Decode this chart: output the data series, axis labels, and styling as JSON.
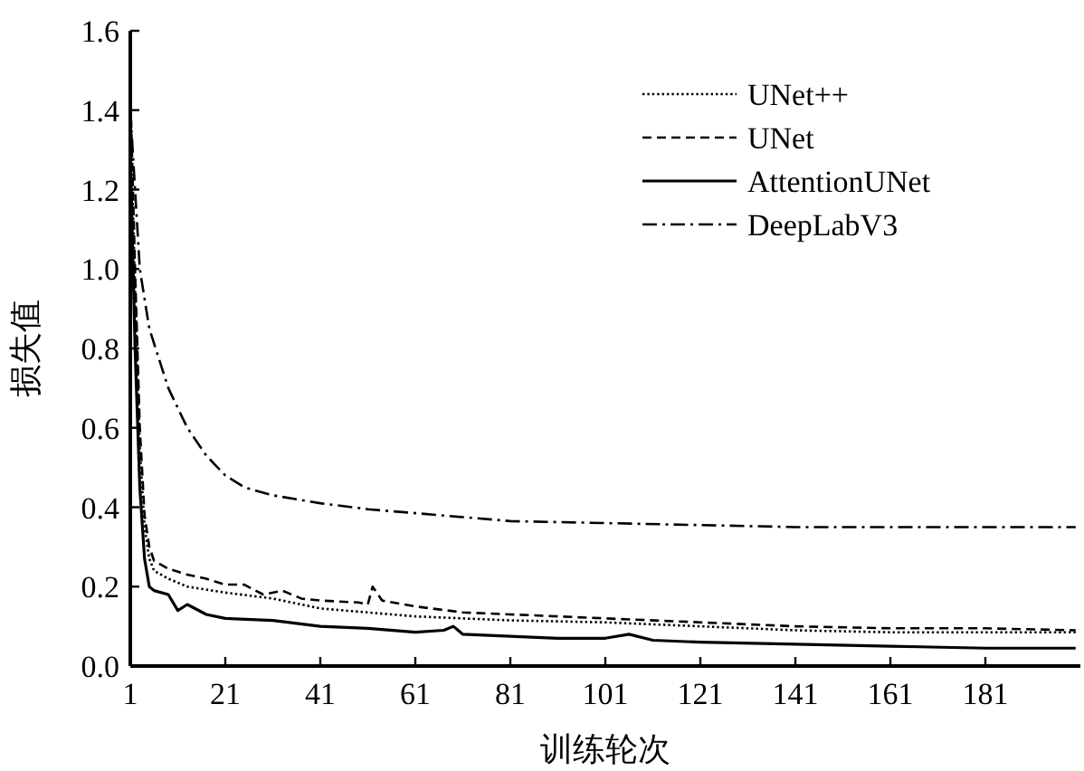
{
  "chart_data": {
    "type": "line",
    "xlabel": "训练轮次",
    "ylabel": "损失值",
    "xlim": [
      1,
      201
    ],
    "xticks": [
      1,
      21,
      41,
      61,
      81,
      101,
      121,
      141,
      161,
      181
    ],
    "ylim": [
      0,
      1.6
    ],
    "yticks": [
      {
        "value": 0,
        "label": "0.0"
      },
      {
        "value": 0.2,
        "label": "0.2"
      },
      {
        "value": 0.4,
        "label": "0.4"
      },
      {
        "value": 0.6,
        "label": "0.6"
      },
      {
        "value": 0.8,
        "label": "0.8"
      },
      {
        "value": 1,
        "label": "1.0"
      },
      {
        "value": 1.2,
        "label": "1.2"
      },
      {
        "value": 1.4,
        "label": "1.4"
      },
      {
        "value": 1.6,
        "label": "1.6"
      }
    ],
    "grid": false,
    "legend": "top right",
    "marker": "none",
    "series": [
      {
        "name": "UNet++",
        "color": "#000000",
        "line_style": "dotted",
        "x": [
          1,
          2,
          3,
          4,
          5,
          6,
          9,
          13,
          21,
          31,
          41,
          51,
          61,
          71,
          81,
          101,
          121,
          141,
          161,
          181,
          200
        ],
        "values": [
          1.4,
          0.95,
          0.55,
          0.35,
          0.27,
          0.24,
          0.22,
          0.2,
          0.185,
          0.17,
          0.145,
          0.135,
          0.125,
          0.12,
          0.115,
          0.11,
          0.1,
          0.09,
          0.085,
          0.085,
          0.085
        ]
      },
      {
        "name": "UNet",
        "color": "#000000",
        "line_style": "dashed",
        "x": [
          1,
          2,
          3,
          4,
          5,
          6,
          9,
          13,
          17,
          21,
          25,
          29,
          33,
          37,
          41,
          49,
          51,
          52,
          54,
          61,
          71,
          81,
          91,
          101,
          121,
          141,
          161,
          181,
          200
        ],
        "values": [
          1.45,
          1.0,
          0.6,
          0.38,
          0.3,
          0.265,
          0.245,
          0.23,
          0.22,
          0.205,
          0.205,
          0.18,
          0.19,
          0.17,
          0.165,
          0.16,
          0.155,
          0.2,
          0.165,
          0.15,
          0.135,
          0.13,
          0.125,
          0.12,
          0.11,
          0.1,
          0.095,
          0.095,
          0.09
        ]
      },
      {
        "name": "AttentionUNet",
        "color": "#000000",
        "line_style": "solid",
        "x": [
          1,
          2,
          3,
          4,
          5,
          6,
          9,
          11,
          13,
          17,
          21,
          31,
          41,
          51,
          61,
          67,
          69,
          71,
          81,
          91,
          101,
          106,
          111,
          121,
          141,
          161,
          181,
          200
        ],
        "values": [
          1.3,
          0.8,
          0.45,
          0.27,
          0.2,
          0.19,
          0.18,
          0.14,
          0.155,
          0.13,
          0.12,
          0.115,
          0.1,
          0.095,
          0.085,
          0.09,
          0.1,
          0.08,
          0.075,
          0.07,
          0.07,
          0.08,
          0.065,
          0.06,
          0.055,
          0.05,
          0.045,
          0.045
        ]
      },
      {
        "name": "DeepLabV3",
        "color": "#000000",
        "line_style": "dashdot",
        "x": [
          1,
          3,
          5,
          9,
          13,
          17,
          21,
          25,
          31,
          41,
          51,
          61,
          71,
          81,
          101,
          121,
          141,
          161,
          181,
          200
        ],
        "values": [
          1.4,
          1.0,
          0.85,
          0.7,
          0.6,
          0.53,
          0.48,
          0.45,
          0.43,
          0.41,
          0.395,
          0.385,
          0.375,
          0.365,
          0.36,
          0.355,
          0.35,
          0.35,
          0.35,
          0.35
        ]
      }
    ]
  }
}
